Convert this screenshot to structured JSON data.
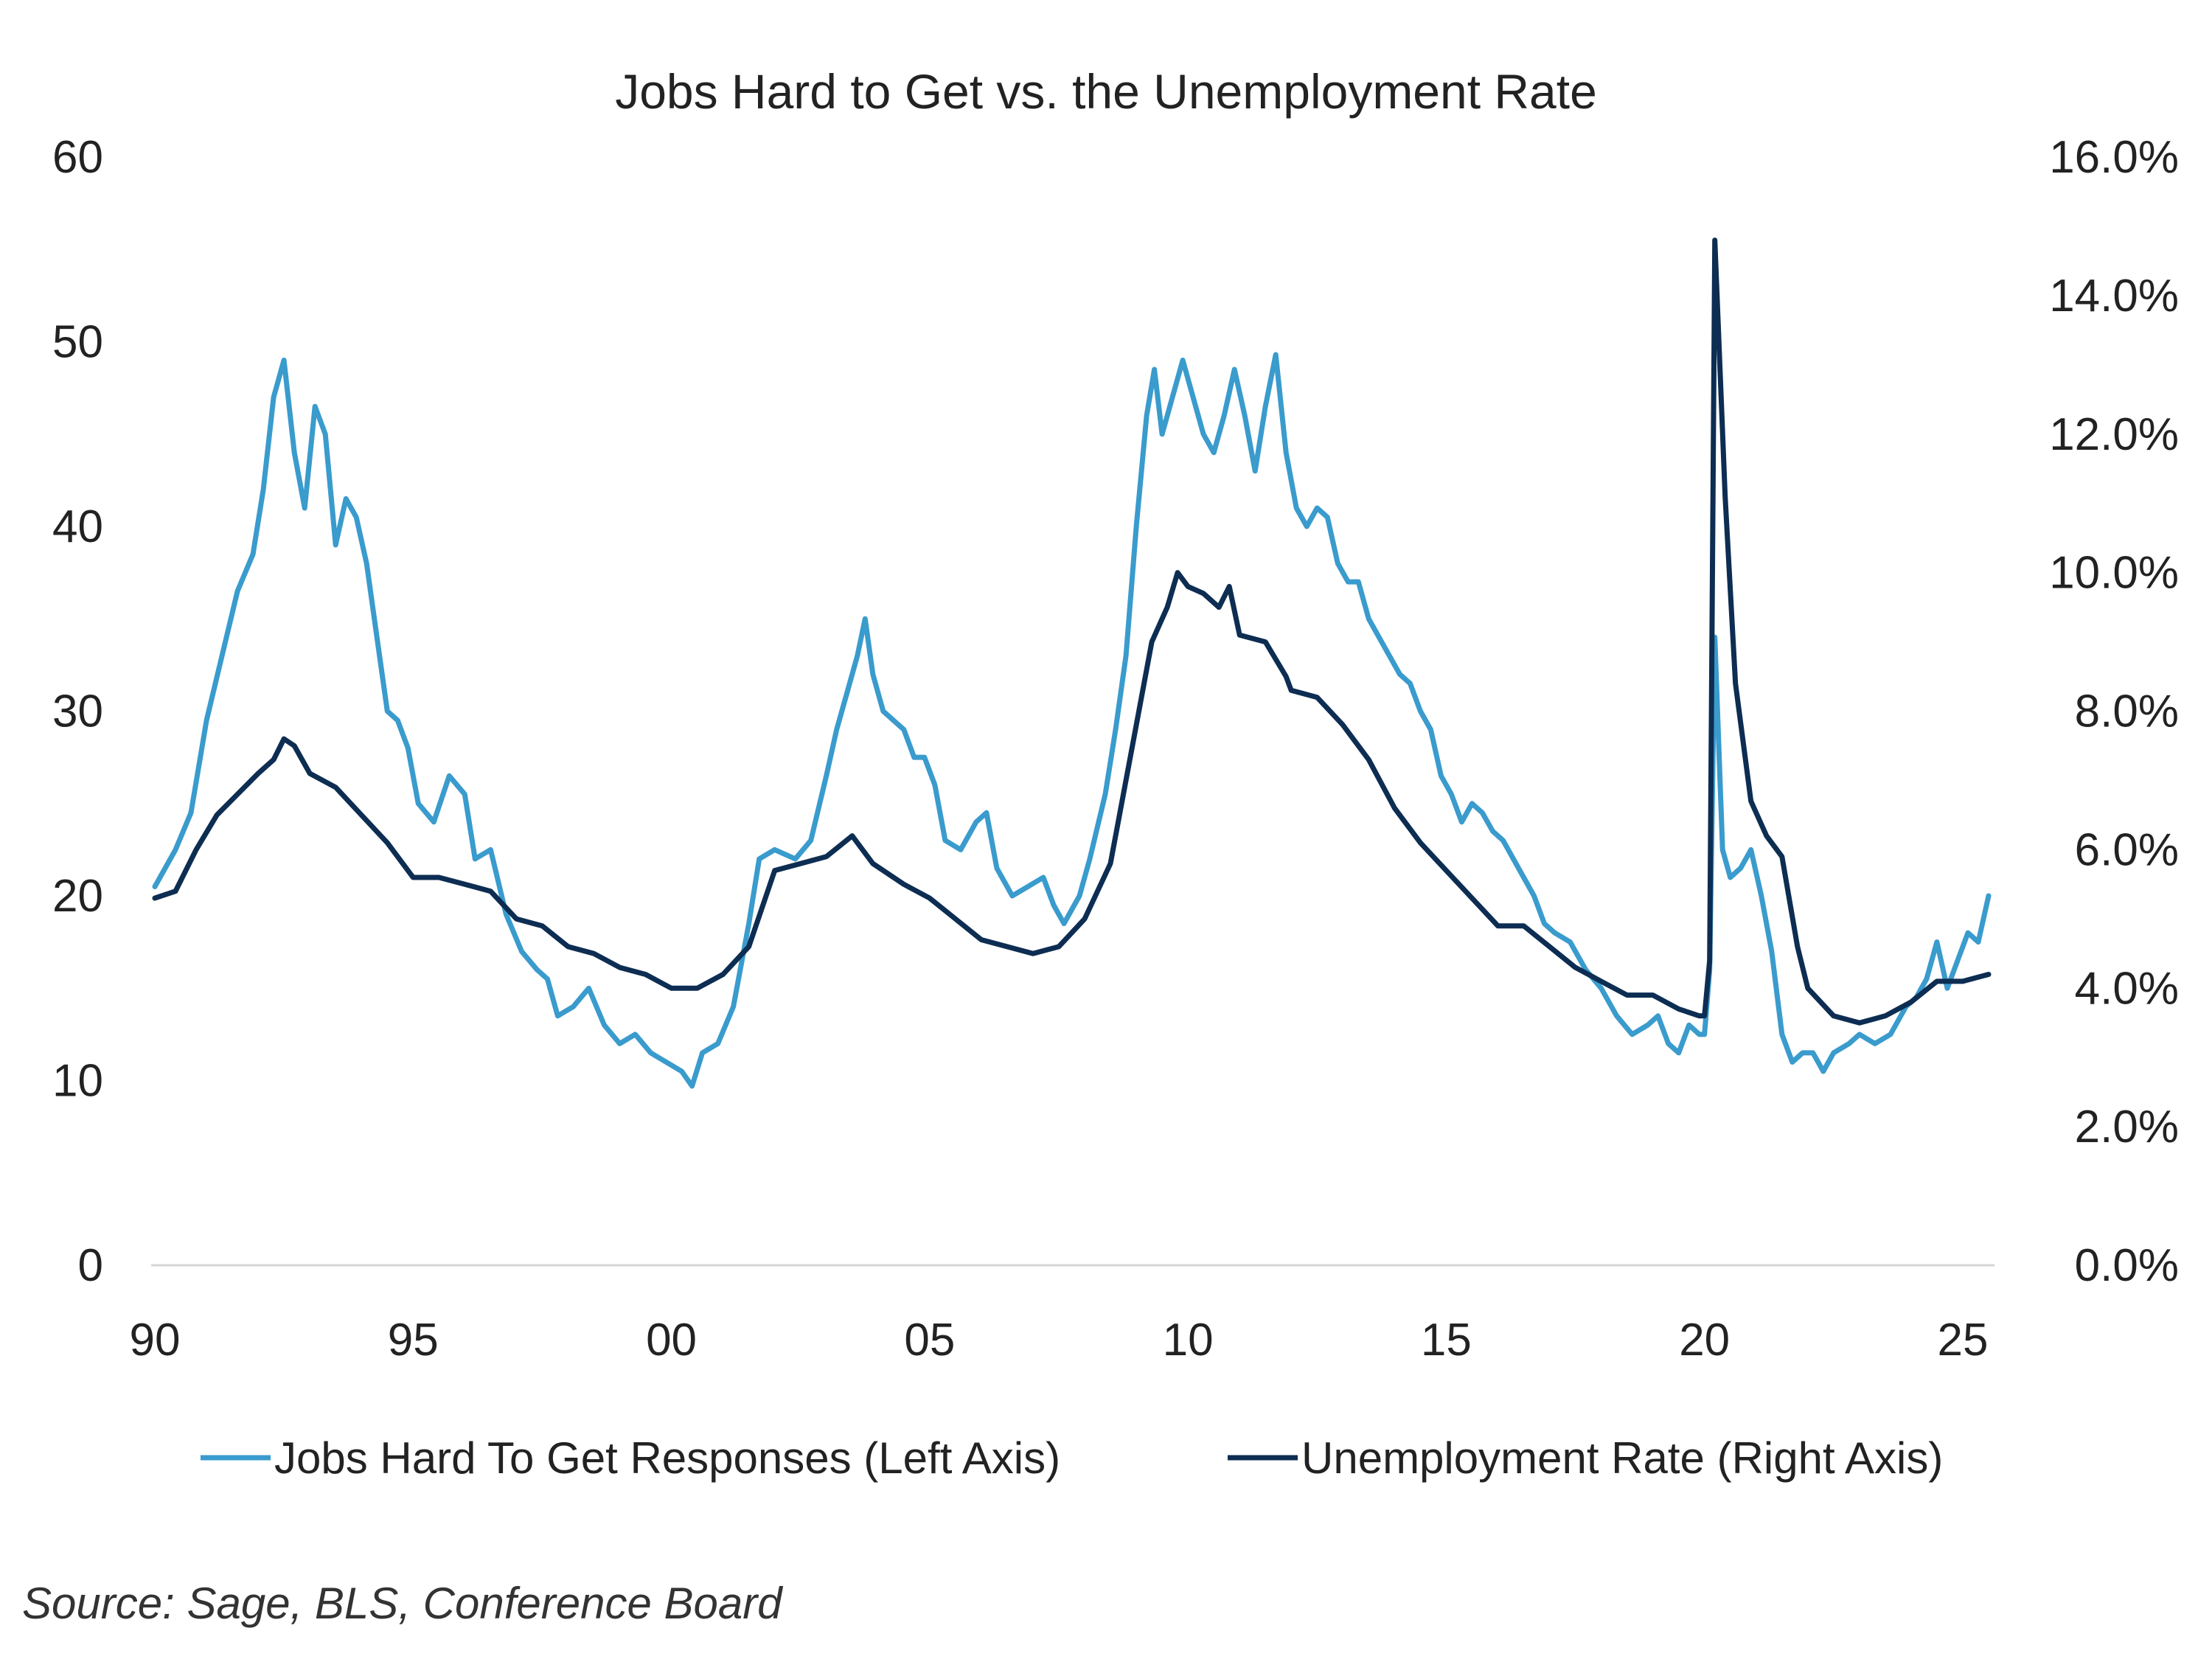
{
  "chart_data": {
    "type": "line",
    "title": "Jobs Hard to Get vs. the Unemployment Rate",
    "source": "Source: Sage, BLS, Conference Board",
    "x_axis": {
      "range": [
        1990.0,
        2025.5
      ],
      "ticks": [
        1990,
        1995,
        2000,
        2005,
        2010,
        2015,
        2020,
        2025
      ],
      "tick_labels": [
        "90",
        "95",
        "00",
        "05",
        "10",
        "15",
        "20",
        "25"
      ]
    },
    "y_left": {
      "range": [
        0,
        60
      ],
      "ticks": [
        0,
        10,
        20,
        30,
        40,
        50,
        60
      ],
      "tick_labels": [
        "0",
        "10",
        "20",
        "30",
        "40",
        "50",
        "60"
      ]
    },
    "y_right": {
      "range": [
        0,
        16
      ],
      "ticks": [
        0,
        2,
        4,
        6,
        8,
        10,
        12,
        14,
        16
      ],
      "tick_labels": [
        "0.0%",
        "2.0%",
        "4.0%",
        "6.0%",
        "8.0%",
        "10.0%",
        "12.0%",
        "14.0%",
        "16.0%"
      ]
    },
    "grid": false,
    "legend_position": "bottom",
    "series": [
      {
        "name": "Jobs Hard To Get Responses (Left Axis)",
        "axis": "left",
        "color": "#3a9bcd",
        "points": [
          [
            1990.0,
            20.5
          ],
          [
            1990.4,
            22.5
          ],
          [
            1990.7,
            24.5
          ],
          [
            1991.0,
            29.5
          ],
          [
            1991.3,
            33.0
          ],
          [
            1991.6,
            36.5
          ],
          [
            1991.9,
            38.5
          ],
          [
            1992.1,
            42.0
          ],
          [
            1992.3,
            47.0
          ],
          [
            1992.5,
            49.0
          ],
          [
            1992.7,
            44.0
          ],
          [
            1992.9,
            41.0
          ],
          [
            1993.1,
            46.5
          ],
          [
            1993.3,
            45.0
          ],
          [
            1993.5,
            39.0
          ],
          [
            1993.7,
            41.5
          ],
          [
            1993.9,
            40.5
          ],
          [
            1994.1,
            38.0
          ],
          [
            1994.3,
            34.0
          ],
          [
            1994.5,
            30.0
          ],
          [
            1994.7,
            29.5
          ],
          [
            1994.9,
            28.0
          ],
          [
            1995.1,
            25.0
          ],
          [
            1995.4,
            24.0
          ],
          [
            1995.7,
            26.5
          ],
          [
            1996.0,
            25.5
          ],
          [
            1996.2,
            22.0
          ],
          [
            1996.5,
            22.5
          ],
          [
            1996.8,
            19.0
          ],
          [
            1997.1,
            17.0
          ],
          [
            1997.4,
            16.0
          ],
          [
            1997.6,
            15.5
          ],
          [
            1997.8,
            13.5
          ],
          [
            1998.1,
            14.0
          ],
          [
            1998.4,
            15.0
          ],
          [
            1998.7,
            13.0
          ],
          [
            1999.0,
            12.0
          ],
          [
            1999.3,
            12.5
          ],
          [
            1999.6,
            11.5
          ],
          [
            1999.9,
            11.0
          ],
          [
            2000.2,
            10.5
          ],
          [
            2000.4,
            9.7
          ],
          [
            2000.6,
            11.5
          ],
          [
            2000.9,
            12.0
          ],
          [
            2001.2,
            14.0
          ],
          [
            2001.5,
            18.5
          ],
          [
            2001.7,
            22.0
          ],
          [
            2002.0,
            22.5
          ],
          [
            2002.4,
            22.0
          ],
          [
            2002.7,
            23.0
          ],
          [
            2003.0,
            26.5
          ],
          [
            2003.2,
            29.0
          ],
          [
            2003.4,
            31.0
          ],
          [
            2003.6,
            33.0
          ],
          [
            2003.75,
            35.0
          ],
          [
            2003.9,
            32.0
          ],
          [
            2004.1,
            30.0
          ],
          [
            2004.3,
            29.5
          ],
          [
            2004.5,
            29.0
          ],
          [
            2004.7,
            27.5
          ],
          [
            2004.9,
            27.5
          ],
          [
            2005.1,
            26.0
          ],
          [
            2005.3,
            23.0
          ],
          [
            2005.6,
            22.5
          ],
          [
            2005.9,
            24.0
          ],
          [
            2006.1,
            24.5
          ],
          [
            2006.3,
            21.5
          ],
          [
            2006.6,
            20.0
          ],
          [
            2006.9,
            20.5
          ],
          [
            2007.2,
            21.0
          ],
          [
            2007.4,
            19.5
          ],
          [
            2007.6,
            18.5
          ],
          [
            2007.9,
            20.0
          ],
          [
            2008.1,
            22.0
          ],
          [
            2008.4,
            25.5
          ],
          [
            2008.6,
            29.0
          ],
          [
            2008.8,
            33.0
          ],
          [
            2009.0,
            40.0
          ],
          [
            2009.2,
            46.0
          ],
          [
            2009.35,
            48.5
          ],
          [
            2009.5,
            45.0
          ],
          [
            2009.7,
            47.0
          ],
          [
            2009.9,
            49.0
          ],
          [
            2010.1,
            47.0
          ],
          [
            2010.3,
            45.0
          ],
          [
            2010.5,
            44.0
          ],
          [
            2010.7,
            46.0
          ],
          [
            2010.9,
            48.5
          ],
          [
            2011.1,
            46.0
          ],
          [
            2011.3,
            43.0
          ],
          [
            2011.5,
            46.5
          ],
          [
            2011.7,
            49.3
          ],
          [
            2011.9,
            44.0
          ],
          [
            2012.1,
            41.0
          ],
          [
            2012.3,
            40.0
          ],
          [
            2012.5,
            41.0
          ],
          [
            2012.7,
            40.5
          ],
          [
            2012.9,
            38.0
          ],
          [
            2013.1,
            37.0
          ],
          [
            2013.3,
            37.0
          ],
          [
            2013.5,
            35.0
          ],
          [
            2013.7,
            34.0
          ],
          [
            2013.9,
            33.0
          ],
          [
            2014.1,
            32.0
          ],
          [
            2014.3,
            31.5
          ],
          [
            2014.5,
            30.0
          ],
          [
            2014.7,
            29.0
          ],
          [
            2014.9,
            26.5
          ],
          [
            2015.1,
            25.5
          ],
          [
            2015.3,
            24.0
          ],
          [
            2015.5,
            25.0
          ],
          [
            2015.7,
            24.5
          ],
          [
            2015.9,
            23.5
          ],
          [
            2016.1,
            23.0
          ],
          [
            2016.3,
            22.0
          ],
          [
            2016.5,
            21.0
          ],
          [
            2016.7,
            20.0
          ],
          [
            2016.9,
            18.5
          ],
          [
            2017.1,
            18.0
          ],
          [
            2017.4,
            17.5
          ],
          [
            2017.7,
            16.0
          ],
          [
            2018.0,
            15.0
          ],
          [
            2018.3,
            13.5
          ],
          [
            2018.6,
            12.5
          ],
          [
            2018.9,
            13.0
          ],
          [
            2019.1,
            13.5
          ],
          [
            2019.3,
            12.0
          ],
          [
            2019.5,
            11.5
          ],
          [
            2019.7,
            13.0
          ],
          [
            2019.9,
            12.5
          ],
          [
            2020.0,
            12.5
          ],
          [
            2020.1,
            16.0
          ],
          [
            2020.2,
            34.0
          ],
          [
            2020.35,
            22.5
          ],
          [
            2020.5,
            21.0
          ],
          [
            2020.7,
            21.5
          ],
          [
            2020.9,
            22.5
          ],
          [
            2021.1,
            20.0
          ],
          [
            2021.3,
            17.0
          ],
          [
            2021.5,
            12.5
          ],
          [
            2021.7,
            11.0
          ],
          [
            2021.9,
            11.5
          ],
          [
            2022.1,
            11.5
          ],
          [
            2022.3,
            10.5
          ],
          [
            2022.5,
            11.5
          ],
          [
            2022.8,
            12.0
          ],
          [
            2023.0,
            12.5
          ],
          [
            2023.3,
            12.0
          ],
          [
            2023.6,
            12.5
          ],
          [
            2023.9,
            14.0
          ],
          [
            2024.1,
            14.5
          ],
          [
            2024.3,
            15.5
          ],
          [
            2024.5,
            17.5
          ],
          [
            2024.7,
            15.0
          ],
          [
            2024.9,
            16.5
          ],
          [
            2025.1,
            18.0
          ],
          [
            2025.3,
            17.5
          ],
          [
            2025.5,
            20.0
          ]
        ]
      },
      {
        "name": "Unemployment Rate (Right Axis)",
        "axis": "right",
        "color": "#0d2d52",
        "points": [
          [
            1990.0,
            5.3
          ],
          [
            1990.4,
            5.4
          ],
          [
            1990.8,
            6.0
          ],
          [
            1991.2,
            6.5
          ],
          [
            1991.6,
            6.8
          ],
          [
            1992.0,
            7.1
          ],
          [
            1992.3,
            7.3
          ],
          [
            1992.5,
            7.6
          ],
          [
            1992.7,
            7.5
          ],
          [
            1993.0,
            7.1
          ],
          [
            1993.5,
            6.9
          ],
          [
            1994.0,
            6.5
          ],
          [
            1994.5,
            6.1
          ],
          [
            1995.0,
            5.6
          ],
          [
            1995.5,
            5.6
          ],
          [
            1996.0,
            5.5
          ],
          [
            1996.5,
            5.4
          ],
          [
            1997.0,
            5.0
          ],
          [
            1997.5,
            4.9
          ],
          [
            1998.0,
            4.6
          ],
          [
            1998.5,
            4.5
          ],
          [
            1999.0,
            4.3
          ],
          [
            1999.5,
            4.2
          ],
          [
            2000.0,
            4.0
          ],
          [
            2000.5,
            4.0
          ],
          [
            2001.0,
            4.2
          ],
          [
            2001.5,
            4.6
          ],
          [
            2002.0,
            5.7
          ],
          [
            2002.5,
            5.8
          ],
          [
            2003.0,
            5.9
          ],
          [
            2003.5,
            6.2
          ],
          [
            2003.9,
            5.8
          ],
          [
            2004.5,
            5.5
          ],
          [
            2005.0,
            5.3
          ],
          [
            2005.5,
            5.0
          ],
          [
            2006.0,
            4.7
          ],
          [
            2006.5,
            4.6
          ],
          [
            2007.0,
            4.5
          ],
          [
            2007.5,
            4.6
          ],
          [
            2008.0,
            5.0
          ],
          [
            2008.5,
            5.8
          ],
          [
            2009.0,
            7.8
          ],
          [
            2009.3,
            9.0
          ],
          [
            2009.6,
            9.5
          ],
          [
            2009.8,
            10.0
          ],
          [
            2010.0,
            9.8
          ],
          [
            2010.3,
            9.7
          ],
          [
            2010.6,
            9.5
          ],
          [
            2010.8,
            9.8
          ],
          [
            2011.0,
            9.1
          ],
          [
            2011.5,
            9.0
          ],
          [
            2011.9,
            8.5
          ],
          [
            2012.0,
            8.3
          ],
          [
            2012.5,
            8.2
          ],
          [
            2013.0,
            7.8
          ],
          [
            2013.5,
            7.3
          ],
          [
            2014.0,
            6.6
          ],
          [
            2014.5,
            6.1
          ],
          [
            2015.0,
            5.7
          ],
          [
            2015.5,
            5.3
          ],
          [
            2016.0,
            4.9
          ],
          [
            2016.5,
            4.9
          ],
          [
            2017.0,
            4.6
          ],
          [
            2017.5,
            4.3
          ],
          [
            2018.0,
            4.1
          ],
          [
            2018.5,
            3.9
          ],
          [
            2019.0,
            3.9
          ],
          [
            2019.5,
            3.7
          ],
          [
            2019.9,
            3.6
          ],
          [
            2020.0,
            3.6
          ],
          [
            2020.1,
            4.4
          ],
          [
            2020.2,
            14.8
          ],
          [
            2020.4,
            11.1
          ],
          [
            2020.6,
            8.4
          ],
          [
            2020.9,
            6.7
          ],
          [
            2021.2,
            6.2
          ],
          [
            2021.5,
            5.9
          ],
          [
            2021.8,
            4.6
          ],
          [
            2022.0,
            4.0
          ],
          [
            2022.5,
            3.6
          ],
          [
            2023.0,
            3.5
          ],
          [
            2023.5,
            3.6
          ],
          [
            2024.0,
            3.8
          ],
          [
            2024.5,
            4.1
          ],
          [
            2025.0,
            4.1
          ],
          [
            2025.5,
            4.2
          ]
        ]
      }
    ]
  }
}
